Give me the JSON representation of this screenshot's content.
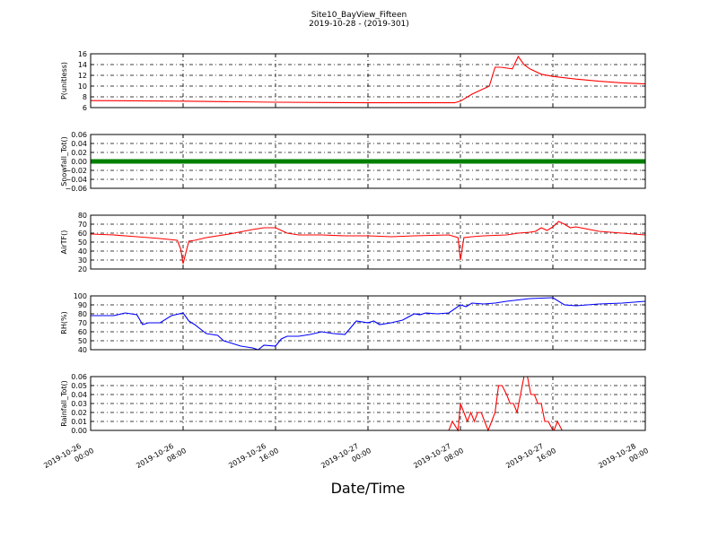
{
  "chart_data": {
    "title": "Site10_BayView_Fifteen",
    "subtitle": "2019-10-28 - (2019-301)",
    "xlabel": "Date/Time",
    "x_ticks": [
      {
        "t": 0,
        "l1": "2019-10-26",
        "l2": "00:00"
      },
      {
        "t": 8,
        "l1": "2019-10-26",
        "l2": "08:00"
      },
      {
        "t": 16,
        "l1": "2019-10-26",
        "l2": "16:00"
      },
      {
        "t": 24,
        "l1": "2019-10-27",
        "l2": "00:00"
      },
      {
        "t": 32,
        "l1": "2019-10-27",
        "l2": "08:00"
      },
      {
        "t": 40,
        "l1": "2019-10-27",
        "l2": "16:00"
      },
      {
        "t": 48,
        "l1": "2019-10-28",
        "l2": "00:00"
      }
    ],
    "panels": [
      {
        "type": "line",
        "ylabel": "P(unitless)",
        "ylim": [
          6,
          16
        ],
        "yticks": [
          "6",
          "8",
          "10",
          "12",
          "14",
          "16"
        ],
        "color": "#ff0000",
        "x": [
          0,
          8,
          16,
          24,
          30,
          31.5,
          32,
          33,
          34,
          34.5,
          35,
          35.5,
          36.5,
          37,
          37.5,
          38,
          39,
          40,
          42,
          44,
          46,
          48
        ],
        "y": [
          7.3,
          7.2,
          7.0,
          6.9,
          6.9,
          6.9,
          7.2,
          8.5,
          9.5,
          10.0,
          13.5,
          13.5,
          13.2,
          15.5,
          14.0,
          13.2,
          12.2,
          11.8,
          11.3,
          10.9,
          10.6,
          10.4
        ]
      },
      {
        "type": "scatter-line",
        "ylabel": "Snowfall_Tot()",
        "ylim": [
          -0.06,
          0.06
        ],
        "yticks": [
          "−0.06",
          "−0.04",
          "−0.02",
          "0.00",
          "0.02",
          "0.04",
          "0.06"
        ],
        "color": "#007f00",
        "x": [
          0,
          48
        ],
        "y": [
          0,
          0
        ]
      },
      {
        "type": "line",
        "ylabel": "AirTF()",
        "ylim": [
          20,
          80
        ],
        "yticks": [
          "20",
          "30",
          "40",
          "50",
          "60",
          "70",
          "80"
        ],
        "color": "#ff0000",
        "x": [
          0,
          2,
          4,
          6,
          7.5,
          7.8,
          8,
          8.5,
          9,
          10,
          12,
          14,
          15,
          16,
          17,
          18,
          20,
          22,
          24,
          26,
          28,
          31,
          31.8,
          32,
          32.3,
          33,
          34,
          36,
          37,
          38,
          38.5,
          39,
          39.5,
          40,
          40.5,
          41,
          41.5,
          42,
          44,
          46,
          48
        ],
        "y": [
          59,
          58,
          56,
          54,
          52,
          42,
          26,
          51,
          52,
          55,
          59,
          64,
          66,
          66,
          60,
          58,
          58,
          57,
          57,
          56,
          57,
          58,
          55,
          30,
          55,
          56,
          57,
          58,
          60,
          61,
          62,
          66,
          63,
          67,
          73,
          70,
          66,
          67,
          62,
          60,
          58
        ]
      },
      {
        "type": "line",
        "ylabel": "RH(%)",
        "ylim": [
          40,
          100
        ],
        "yticks": [
          "40",
          "50",
          "60",
          "70",
          "80",
          "90",
          "100"
        ],
        "color": "#0000ff",
        "x": [
          0,
          2,
          3,
          4,
          4.5,
          5,
          6,
          7,
          8,
          8.5,
          9,
          10,
          11,
          11.5,
          12,
          13,
          14,
          14.5,
          15,
          16,
          16.5,
          17,
          18,
          19,
          20,
          21,
          22,
          23,
          24,
          24.5,
          25,
          26,
          27,
          28,
          28.5,
          29,
          30,
          31,
          32,
          32.5,
          33,
          34,
          35,
          36,
          38,
          40,
          41,
          42,
          44,
          46,
          48
        ],
        "y": [
          78,
          78,
          81,
          79,
          68,
          70,
          70,
          78,
          81,
          72,
          68,
          58,
          56,
          50,
          48,
          44,
          42,
          40,
          45,
          44,
          52,
          55,
          55,
          57,
          60,
          58,
          57,
          72,
          70,
          72,
          68,
          70,
          73,
          80,
          79,
          81,
          80,
          81,
          90,
          88,
          92,
          91,
          92,
          94,
          97,
          98,
          90,
          89,
          91,
          92,
          94
        ]
      },
      {
        "type": "line",
        "ylabel": "Rainfall_Tot()",
        "ylim": [
          0,
          0.06
        ],
        "yticks": [
          "0.00",
          "0.01",
          "0.02",
          "0.03",
          "0.04",
          "0.05",
          "0.06"
        ],
        "color": "#ff0000",
        "x": [
          0,
          31,
          31.3,
          31.8,
          32,
          32.3,
          32.6,
          32.9,
          33.2,
          33.5,
          33.8,
          34.1,
          34.4,
          34.7,
          35,
          35.3,
          35.6,
          36,
          36.3,
          36.6,
          36.9,
          37.2,
          37.5,
          37.8,
          38.1,
          38.4,
          38.7,
          39,
          39.3,
          39.6,
          40,
          40.1,
          40.4,
          40.8,
          41,
          48
        ],
        "y": [
          0,
          0,
          0.01,
          0,
          0.03,
          0.02,
          0.01,
          0.02,
          0.01,
          0.02,
          0.02,
          0.01,
          0,
          0.01,
          0.02,
          0.05,
          0.05,
          0.04,
          0.03,
          0.03,
          0.02,
          0.04,
          0.06,
          0.06,
          0.04,
          0.04,
          0.03,
          0.03,
          0.01,
          0.01,
          0,
          0,
          0.01,
          0,
          0,
          0
        ]
      }
    ]
  }
}
